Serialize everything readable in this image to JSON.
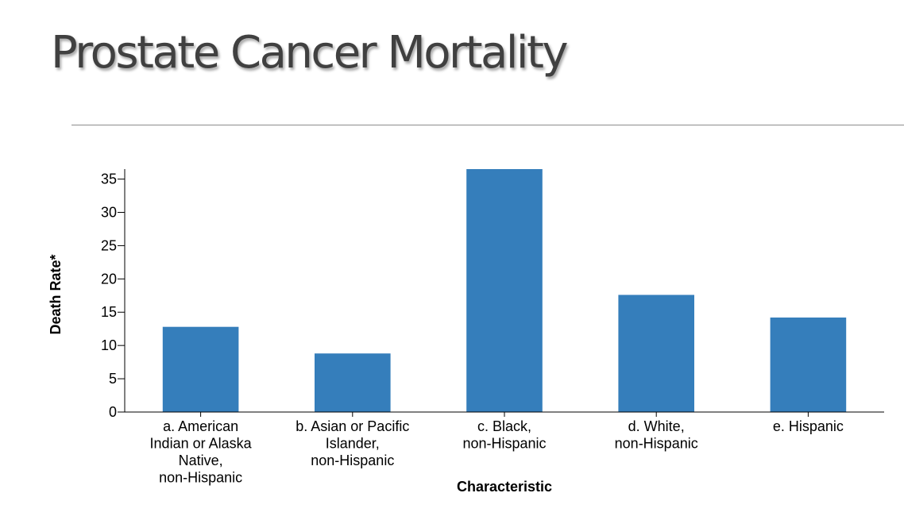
{
  "slide": {
    "title": "Prostate Cancer Mortality"
  },
  "chart_data": {
    "type": "bar",
    "categories": [
      [
        "a. American",
        "Indian or Alaska",
        "Native,",
        "non-Hispanic"
      ],
      [
        "b. Asian or Pacific",
        "Islander,",
        "non-Hispanic"
      ],
      [
        "c. Black,",
        "non-Hispanic"
      ],
      [
        "d. White,",
        "non-Hispanic"
      ],
      [
        "e. Hispanic"
      ]
    ],
    "values": [
      12.8,
      8.8,
      36.5,
      17.6,
      14.2
    ],
    "xlabel": "Characteristic",
    "ylabel": "Death Rate*",
    "ylim": [
      0,
      36.5
    ],
    "yticks": [
      0,
      5,
      10,
      15,
      20,
      25,
      30,
      35
    ],
    "bar_color": "#357ebb",
    "grid": false,
    "legend": "none"
  }
}
